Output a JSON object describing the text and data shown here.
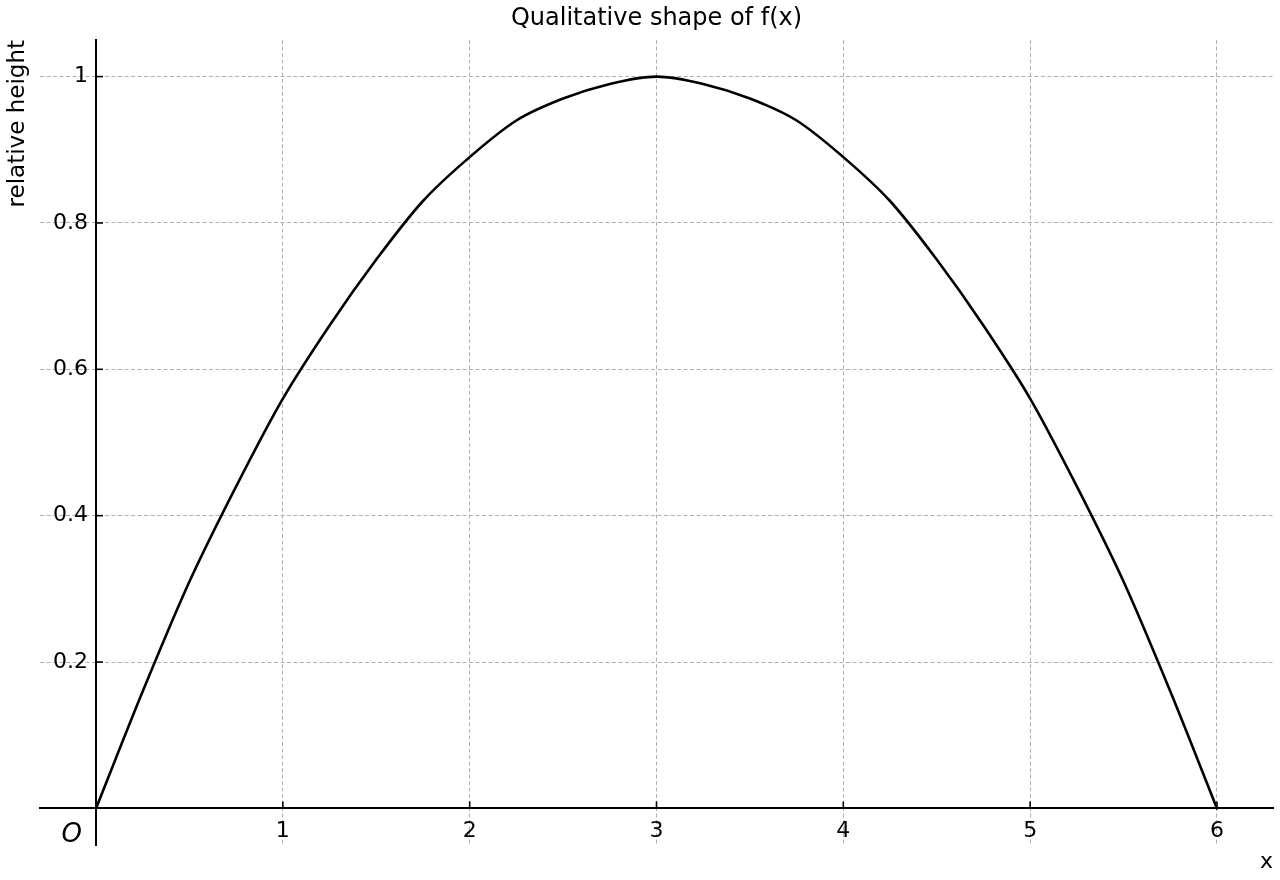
{
  "chart_data": {
    "type": "line",
    "title": "Qualitative shape of f(x)",
    "xlabel": "x",
    "ylabel": "relative height",
    "x": [
      0,
      0.25,
      0.5,
      0.75,
      1,
      1.25,
      1.5,
      1.75,
      2,
      2.25,
      2.5,
      2.75,
      3,
      3.25,
      3.5,
      3.75,
      4,
      4.25,
      4.5,
      4.75,
      5,
      5.25,
      5.5,
      5.75,
      6
    ],
    "series": [
      {
        "color": "#000000",
        "values": [
          0,
          0.16,
          0.31,
          0.44,
          0.56,
          0.66,
          0.75,
          0.83,
          0.89,
          0.94,
          0.97,
          0.99,
          1,
          0.99,
          0.97,
          0.94,
          0.89,
          0.83,
          0.75,
          0.66,
          0.56,
          0.44,
          0.31,
          0.16,
          0
        ]
      }
    ],
    "xlim": [
      -0.3,
      6.3
    ],
    "ylim": [
      -0.05,
      1.05
    ],
    "xticks": [
      1,
      2,
      3,
      4,
      5,
      6
    ],
    "yticks": [
      0.2,
      0.4,
      0.6,
      0.8,
      1
    ],
    "grid": true,
    "marker": "none",
    "line_style": "solid",
    "annotations": [
      {
        "text": "O",
        "x": 0,
        "y": 0
      }
    ]
  }
}
